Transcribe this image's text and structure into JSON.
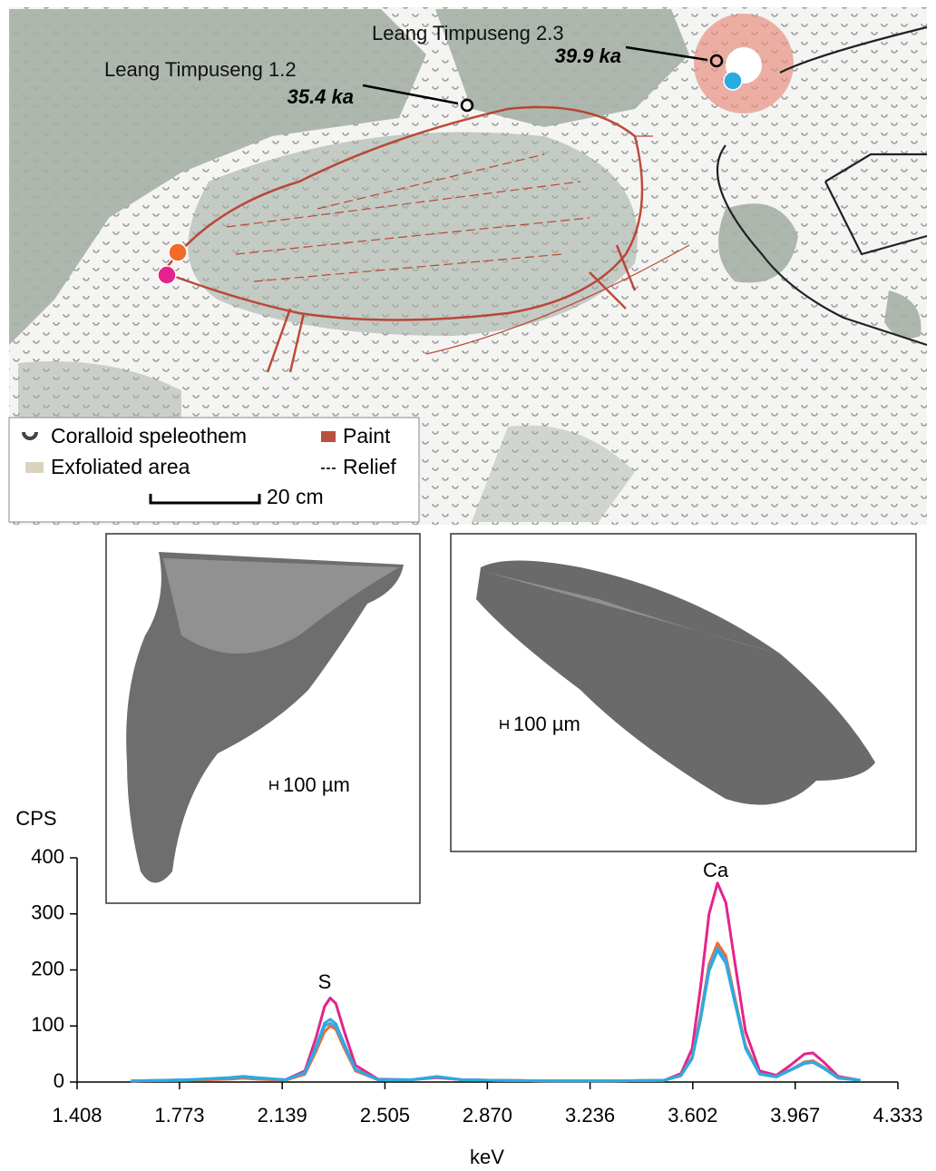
{
  "map": {
    "site_a_label": "Leang Timpuseng 2.3",
    "site_a_age": "39.9 ka",
    "site_b_label": "Leang Timpuseng 1.2",
    "site_b_age": "35.4 ka",
    "legend": {
      "coralloid": "Coralloid speleothem",
      "paint": "Paint",
      "exfoliated": "Exfoliated area",
      "relief": "Relief",
      "scale": "20 cm"
    }
  },
  "images": {
    "scale_left": "100 µm",
    "scale_right": "100 µm"
  },
  "chart_data": {
    "type": "line",
    "y_label": "CPS",
    "x_label": "keV",
    "annotations": [
      "S",
      "Ca"
    ],
    "xlim": [
      1.408,
      4.333
    ],
    "xticks": [
      1.408,
      1.773,
      2.139,
      2.505,
      {
        "value": 2.87,
        "label": "2.870"
      },
      3.236,
      3.602,
      3.967,
      4.333
    ],
    "ylim": [
      0,
      400
    ],
    "yticks": [
      0,
      100,
      200,
      300,
      400
    ],
    "x": [
      1.6,
      1.8,
      1.95,
      2.0,
      2.05,
      2.15,
      2.22,
      2.26,
      2.29,
      2.31,
      2.33,
      2.36,
      2.4,
      2.48,
      2.6,
      2.69,
      2.78,
      2.9,
      3.1,
      3.3,
      3.5,
      3.56,
      3.6,
      3.63,
      3.66,
      3.69,
      3.72,
      3.75,
      3.79,
      3.84,
      3.9,
      3.95,
      4.0,
      4.03,
      4.07,
      4.12,
      4.2
    ],
    "series": [
      {
        "color": "#e5238c",
        "values": [
          2,
          3,
          6,
          8,
          6,
          4,
          20,
          80,
          135,
          150,
          140,
          90,
          30,
          5,
          4,
          8,
          4,
          3,
          2,
          2,
          3,
          15,
          60,
          170,
          300,
          355,
          320,
          220,
          90,
          20,
          12,
          30,
          50,
          52,
          35,
          10,
          3
        ]
      },
      {
        "color": "#f26b2a",
        "values": [
          2,
          3,
          5,
          7,
          5,
          3,
          14,
          55,
          90,
          100,
          94,
          60,
          20,
          4,
          4,
          9,
          4,
          3,
          2,
          2,
          3,
          12,
          45,
          120,
          210,
          248,
          225,
          155,
          65,
          15,
          10,
          22,
          36,
          38,
          26,
          8,
          3
        ]
      },
      {
        "color": "#5b9bd5",
        "values": [
          2,
          4,
          7,
          9,
          7,
          4,
          16,
          60,
          100,
          105,
          98,
          64,
          22,
          4,
          4,
          9,
          4,
          3,
          2,
          2,
          3,
          12,
          44,
          116,
          204,
          240,
          218,
          150,
          62,
          15,
          10,
          22,
          35,
          36,
          25,
          8,
          3
        ]
      },
      {
        "color": "#29abe2",
        "values": [
          2,
          4,
          8,
          10,
          8,
          4,
          17,
          64,
          105,
          112,
          104,
          68,
          23,
          4,
          4,
          10,
          4,
          3,
          2,
          2,
          3,
          11,
          42,
          112,
          198,
          235,
          212,
          146,
          60,
          14,
          9,
          21,
          33,
          35,
          24,
          7,
          3
        ]
      }
    ]
  }
}
